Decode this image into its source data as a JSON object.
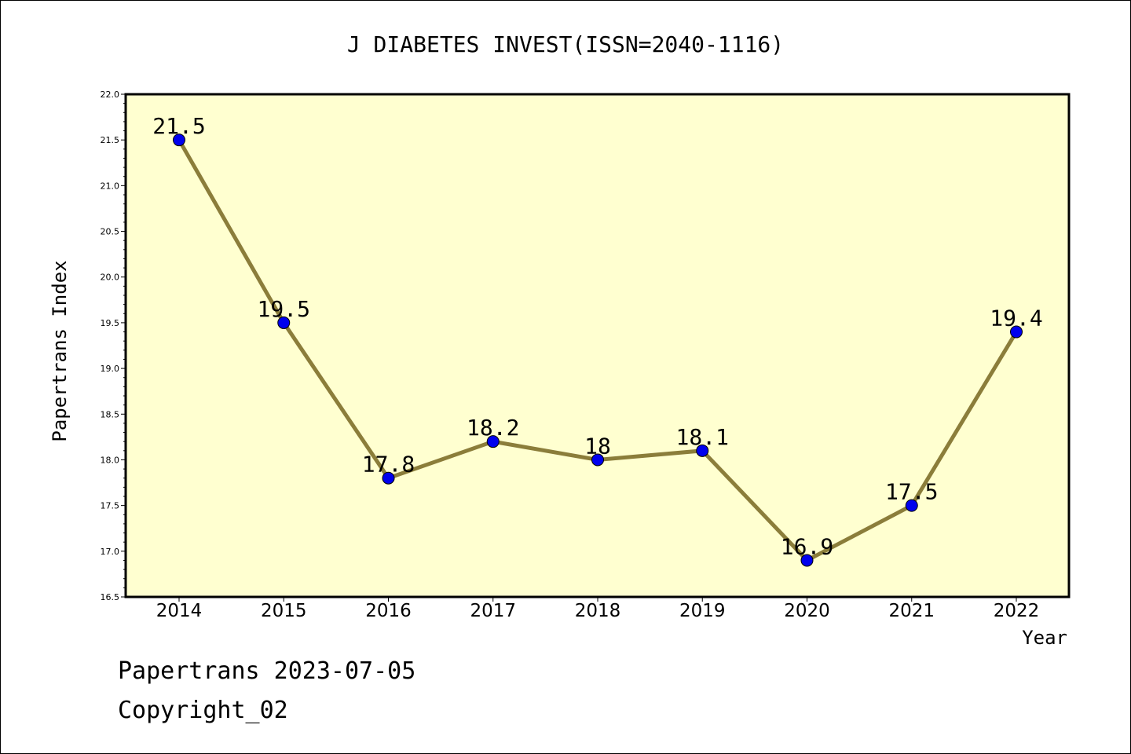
{
  "chart_data": {
    "type": "line",
    "title": "J DIABETES INVEST(ISSN=2040-1116)",
    "xlabel": "Year",
    "ylabel": "Papertrans Index",
    "categories": [
      "2014",
      "2015",
      "2016",
      "2017",
      "2018",
      "2019",
      "2020",
      "2021",
      "2022"
    ],
    "values": [
      21.5,
      19.5,
      17.8,
      18.2,
      18.0,
      18.1,
      16.9,
      17.5,
      19.4
    ],
    "data_labels": [
      "21.5",
      "19.5",
      "17.8",
      "18.2",
      "18",
      "18.1",
      "16.9",
      "17.5",
      "19.4"
    ],
    "ylim": [
      16.5,
      22.0
    ],
    "yticks": [
      "16.5",
      "17.0",
      "17.5",
      "18.0",
      "18.5",
      "19.0",
      "19.5",
      "20.0",
      "20.5",
      "21.0",
      "21.5",
      "22.0"
    ],
    "grid": false,
    "legend": "none",
    "colors": {
      "plot_background": "#ffffd0",
      "line": "#8b7d3a",
      "marker": "#0000ee",
      "axis": "#000000"
    }
  },
  "footer": {
    "stamp": "Papertrans 2023-07-05",
    "copyright": "Copyright_02"
  }
}
